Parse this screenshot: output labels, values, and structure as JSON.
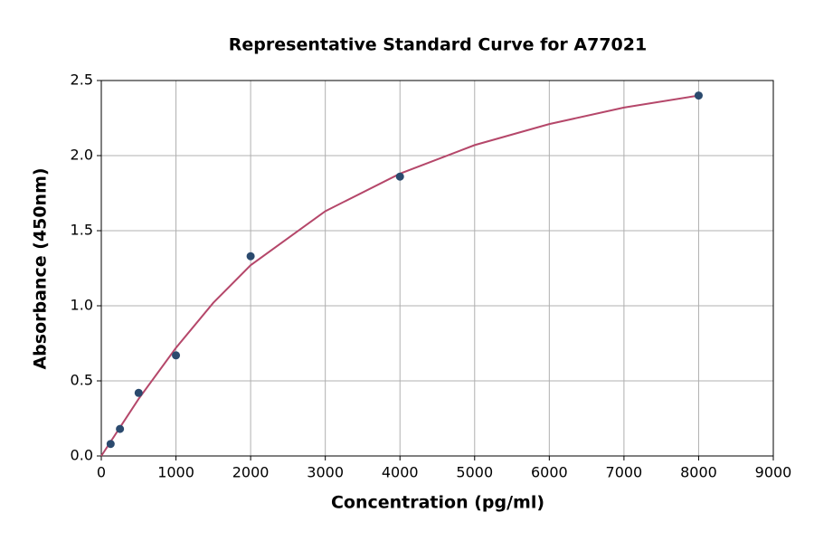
{
  "chart_data": {
    "type": "scatter",
    "title": "Representative Standard Curve for A77021",
    "x_label": "Concentration (pg/ml)",
    "y_label": "Absorbance (450nm)",
    "series": [
      {
        "type": "line",
        "color": "#b5476a",
        "x": [
          0,
          250,
          500,
          1000,
          1500,
          2000,
          3000,
          4000,
          5000,
          6000,
          7000,
          8000
        ],
        "values": [
          0.0,
          0.19,
          0.38,
          0.72,
          1.02,
          1.27,
          1.63,
          1.88,
          2.07,
          2.21,
          2.32,
          2.4
        ]
      },
      {
        "type": "scatter",
        "color": "#2b4a6e",
        "x": [
          125,
          250,
          500,
          1000,
          2000,
          4000,
          8000
        ],
        "values": [
          0.08,
          0.18,
          0.42,
          0.67,
          1.33,
          1.86,
          2.4
        ]
      }
    ],
    "xlim": [
      0,
      9000
    ],
    "xticks": [
      0,
      1000,
      2000,
      3000,
      4000,
      5000,
      6000,
      7000,
      8000,
      9000
    ],
    "ylim": [
      0,
      2.5
    ],
    "yticks": [
      {
        "value": 0,
        "label": "0.0"
      },
      0.5,
      {
        "value": 1,
        "label": "1.0"
      },
      1.5,
      {
        "value": 2,
        "label": "2.0"
      },
      2.5
    ],
    "grid": true
  }
}
